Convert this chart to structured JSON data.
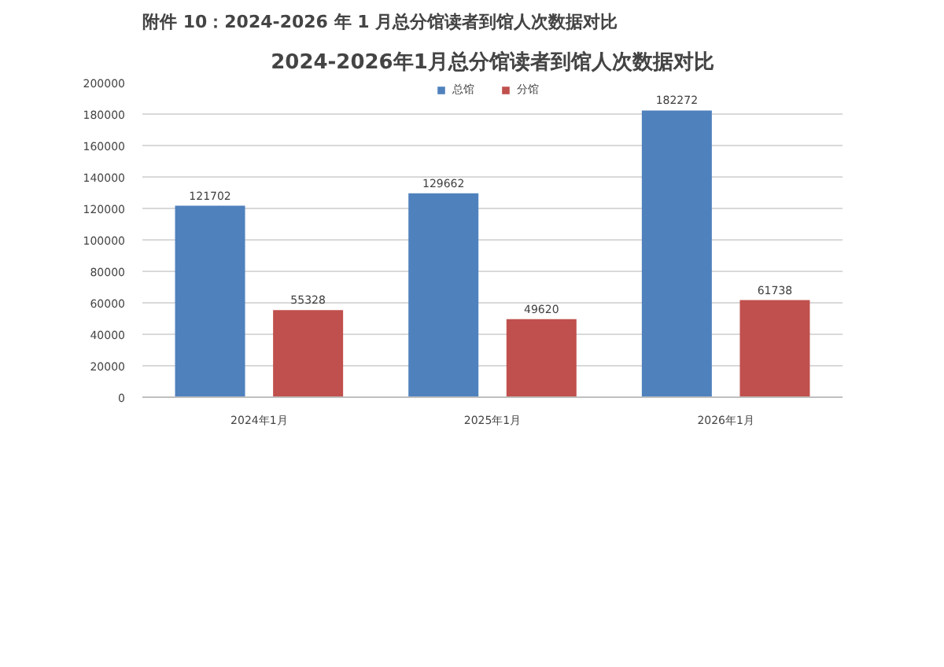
{
  "chart_data": {
    "type": "bar",
    "title": "2024-2026年1月总分馆读者到馆人次数据对比",
    "annotations": [
      "附件 10：2024-2026 年 1 月总分馆读者到馆人次数据对比"
    ],
    "categories": [
      "2024年1月",
      "2025年1月",
      "2026年1月"
    ],
    "series": [
      {
        "name": "总馆",
        "color": "#4f81bd",
        "values": [
          121702,
          129662,
          182272
        ]
      },
      {
        "name": "分馆",
        "color": "#c0504d",
        "values": [
          55328,
          49620,
          61738
        ]
      }
    ],
    "ylim": [
      0,
      200000
    ],
    "yticks": [
      0,
      20000,
      40000,
      60000,
      80000,
      100000,
      120000,
      140000,
      160000,
      180000,
      200000
    ],
    "grid": "y",
    "legend": "top",
    "data_labels": true
  }
}
